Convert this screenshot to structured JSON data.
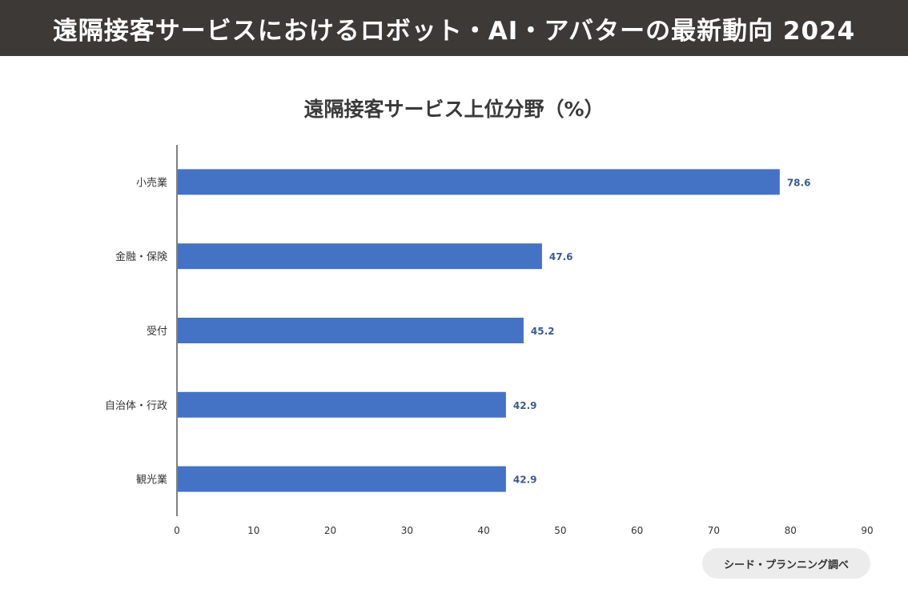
{
  "banner": {
    "title": "遠隔接客サービスにおけるロボット・AI・アバターの最新動向 2024",
    "background": "#3d3936"
  },
  "source_note": "シード・プランニング調べ",
  "chart_data": {
    "type": "bar",
    "orientation": "horizontal",
    "title": "遠隔接客サービス上位分野（%）",
    "categories": [
      "小売業",
      "金融・保険",
      "受付",
      "自治体・行政",
      "観光業"
    ],
    "values": [
      78.6,
      47.6,
      45.2,
      42.9,
      42.9
    ],
    "data_labels": [
      "78.6",
      "47.6",
      "45.2",
      "42.9",
      "42.9"
    ],
    "xlim": [
      0,
      90
    ],
    "xticks": [
      "0",
      "10",
      "20",
      "30",
      "40",
      "50",
      "60",
      "70",
      "80",
      "90"
    ],
    "grid": false,
    "legend": "none",
    "bar_color": "#4472c4",
    "label_color": "#3a5a96"
  }
}
